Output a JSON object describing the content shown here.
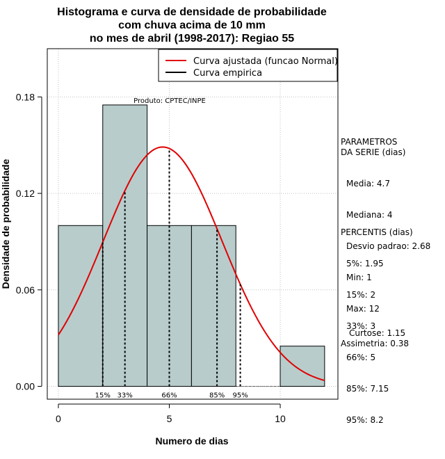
{
  "chart_data": {
    "type": "bar",
    "title_lines": [
      "Histograma e curva de densidade de probabilidade",
      "com chuva acima de 10 mm",
      "no mes de abril (1998-2017): Regiao 55"
    ],
    "xlabel": "Numero de dias",
    "ylabel": "Densidade de probabilidade",
    "xlim": [
      -0.5,
      12.6
    ],
    "ylim": [
      -0.008,
      0.21
    ],
    "x_ticks": [
      0,
      5,
      10
    ],
    "y_ticks": [
      0.0,
      0.06,
      0.12,
      0.18
    ],
    "y_tick_labels": [
      "0.00",
      "0.06",
      "0.12",
      "0.18"
    ],
    "grid": true,
    "bar_color": "#b8cccc",
    "curve_color": "#e00000",
    "bins": [
      {
        "x0": 0,
        "x1": 2,
        "density": 0.1
      },
      {
        "x0": 2,
        "x1": 4,
        "density": 0.175
      },
      {
        "x0": 4,
        "x1": 6,
        "density": 0.1
      },
      {
        "x0": 6,
        "x1": 8,
        "density": 0.1
      },
      {
        "x0": 8,
        "x1": 10,
        "density": 0
      },
      {
        "x0": 10,
        "x1": 12,
        "density": 0.025
      }
    ],
    "normal_fit": {
      "mean": 4.7,
      "sd": 2.68,
      "x_range": [
        0,
        12
      ]
    },
    "percentile_lines": [
      {
        "label": "15%",
        "x": 2
      },
      {
        "label": "33%",
        "x": 3
      },
      {
        "label": "66%",
        "x": 5
      },
      {
        "label": "85%",
        "x": 7.15
      },
      {
        "label": "95%",
        "x": 8.2
      }
    ],
    "legend": {
      "placement": "top-right",
      "entries": [
        {
          "label": "Curva ajustada (funcao Normal)",
          "color": "#e00000"
        },
        {
          "label": "Curva empirica",
          "color": "#000000"
        }
      ]
    },
    "annotation": "Produto: CPTEC/INPE"
  },
  "side_panel": {
    "parametros_title": "PARAMETROS\nDA SERIE (dias)",
    "parametros": [
      "Media: 4.7",
      "Mediana: 4",
      "Desvio padrao: 2.68",
      "Min: 1",
      "Max: 12"
    ],
    "percentis_title": "PERCENTIS (dias)",
    "percentis": [
      "5%: 1.95",
      "15%: 2",
      "33%: 3",
      "66%: 5",
      "85%: 7.15",
      "95%: 8.2"
    ],
    "curtose": "Curtose: 1.15",
    "assimetria": "Assimetria: 0.38"
  }
}
